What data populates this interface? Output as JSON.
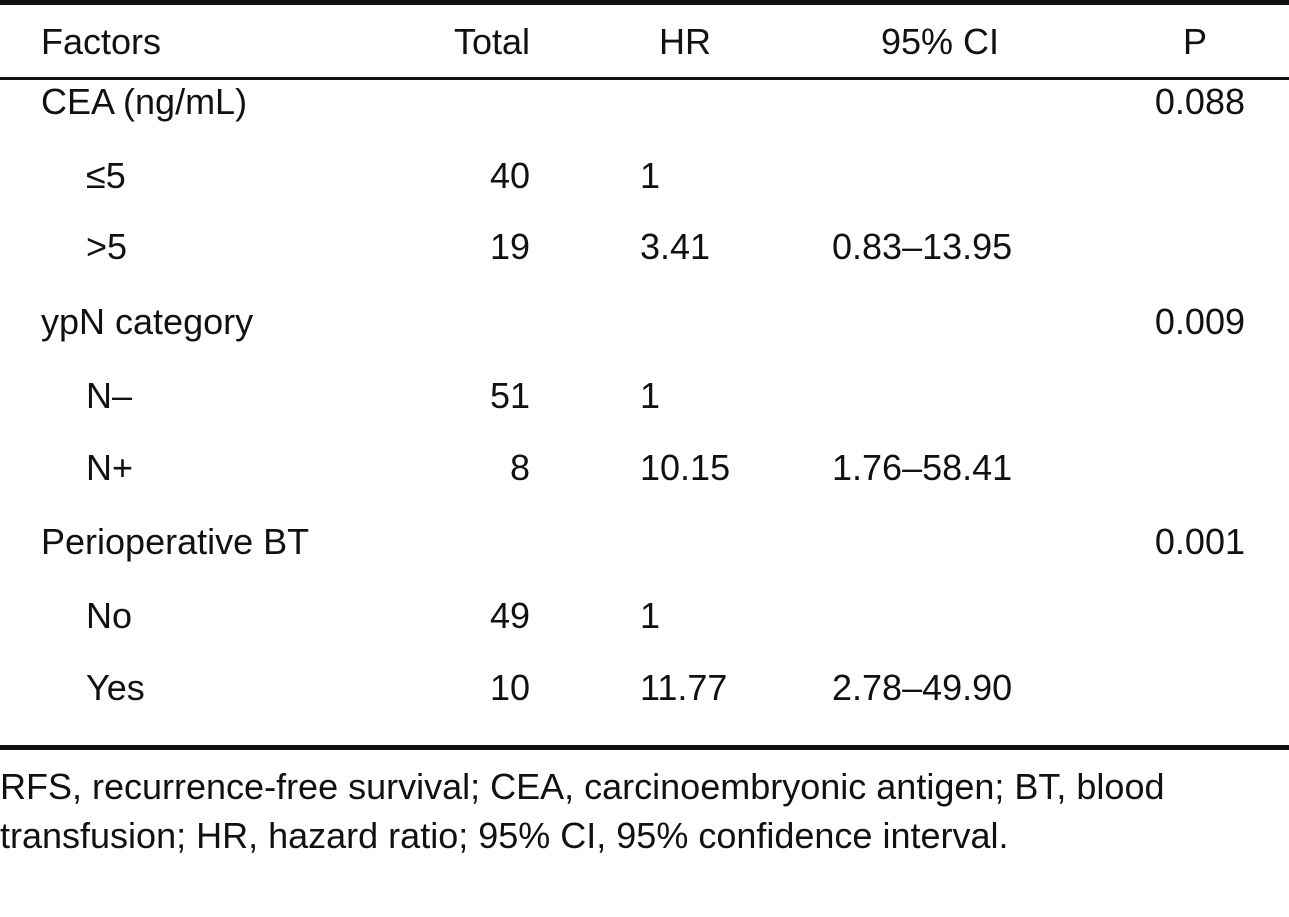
{
  "table": {
    "headers": {
      "factors": "Factors",
      "total": "Total",
      "hr": "HR",
      "ci": "95% CI",
      "p": "P"
    },
    "rows": [
      {
        "factor": "CEA (ng/mL)",
        "total": "",
        "hr": "",
        "ci": "",
        "p": "0.088"
      },
      {
        "factor": "≤5",
        "total": "40",
        "hr": "1",
        "ci": "",
        "p": ""
      },
      {
        "factor": ">5",
        "total": "19",
        "hr": "3.41",
        "ci": "0.83–13.95",
        "p": ""
      },
      {
        "factor": "ypN category",
        "total": "",
        "hr": "",
        "ci": "",
        "p": "0.009"
      },
      {
        "factor": "N–",
        "total": "51",
        "hr": "1",
        "ci": "",
        "p": ""
      },
      {
        "factor": "N+",
        "total": "8",
        "hr": "10.15",
        "ci": "1.76–58.41",
        "p": ""
      },
      {
        "factor": "Perioperative BT",
        "total": "",
        "hr": "",
        "ci": "",
        "p": "0.001"
      },
      {
        "factor": "No",
        "total": "49",
        "hr": "1",
        "ci": "",
        "p": ""
      },
      {
        "factor": "Yes",
        "total": "10",
        "hr": "11.77",
        "ci": "2.78–49.90",
        "p": ""
      }
    ]
  },
  "footnote": "RFS, recurrence-free survival; CEA, carcinoembryonic antigen; BT, blood transfusion; HR, hazard ratio; 95% CI, 95% confidence interval."
}
